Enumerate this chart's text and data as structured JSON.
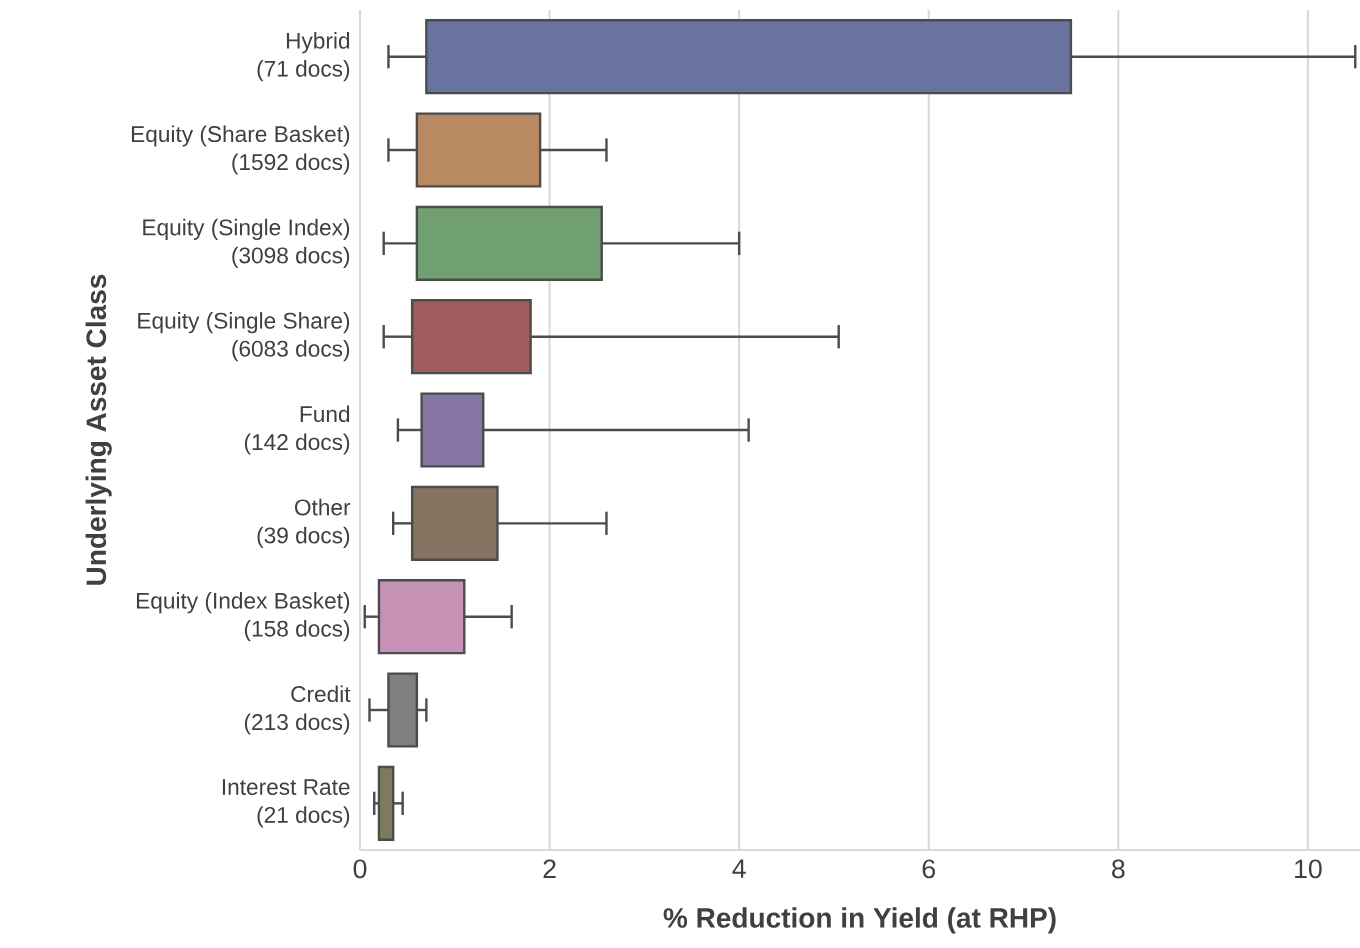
{
  "chart_data": {
    "type": "box",
    "orientation": "horizontal",
    "xlabel": "% Reduction in Yield (at RHP)",
    "ylabel": "Underlying Asset Class",
    "categories": [
      "Hybrid\n(71 docs)",
      "Equity (Share Basket)\n(1592 docs)",
      "Equity (Single Index)\n(3098 docs)",
      "Equity (Single Share)\n(6083 docs)",
      "Fund\n(142 docs)",
      "Other\n(39 docs)",
      "Equity (Index Basket)\n(158 docs)",
      "Credit\n(213 docs)",
      "Interest Rate\n(21 docs)"
    ],
    "colors": [
      "#6873a0",
      "#b98a62",
      "#70a070",
      "#9e5c5c",
      "#8576a5",
      "#857461",
      "#c591b4",
      "#7f7f7f",
      "#7e7a5e"
    ],
    "boxes": [
      {
        "low": 0.3,
        "q1": 0.7,
        "q3": 7.5,
        "high": 10.5
      },
      {
        "low": 0.3,
        "q1": 0.6,
        "q3": 1.9,
        "high": 2.6
      },
      {
        "low": 0.25,
        "q1": 0.6,
        "q3": 2.55,
        "high": 4.0
      },
      {
        "low": 0.25,
        "q1": 0.55,
        "q3": 1.8,
        "high": 5.05
      },
      {
        "low": 0.4,
        "q1": 0.65,
        "q3": 1.3,
        "high": 4.1
      },
      {
        "low": 0.35,
        "q1": 0.55,
        "q3": 1.45,
        "high": 2.6
      },
      {
        "low": 0.05,
        "q1": 0.2,
        "q3": 1.1,
        "high": 1.6
      },
      {
        "low": 0.1,
        "q1": 0.3,
        "q3": 0.6,
        "high": 0.7
      },
      {
        "low": 0.15,
        "q1": 0.2,
        "q3": 0.35,
        "high": 0.45
      }
    ],
    "xlim": [
      0,
      10.55
    ],
    "xticks": [
      0,
      2,
      4,
      6,
      8,
      10
    ],
    "grid": "x"
  }
}
